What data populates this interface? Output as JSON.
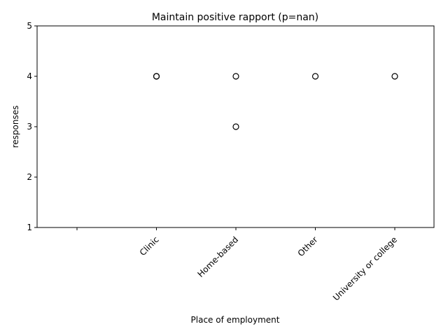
{
  "chart_data": {
    "type": "boxplot",
    "title": "Maintain positive rapport (p=nan)",
    "xlabel": "Place of employment",
    "ylabel": "responses",
    "ylim": [
      1,
      5
    ],
    "yticks": [
      1,
      2,
      3,
      4,
      5
    ],
    "categories": [
      "",
      "Clinic",
      "Home-based",
      "Other",
      "University or college"
    ],
    "series": [
      {
        "category": "",
        "median": null,
        "outliers": []
      },
      {
        "category": "Clinic",
        "median": 5,
        "outliers": [
          4,
          4
        ]
      },
      {
        "category": "Home-based",
        "median": 5,
        "outliers": [
          4,
          3
        ]
      },
      {
        "category": "Other",
        "median": 5,
        "outliers": [
          4
        ]
      },
      {
        "category": "University or college",
        "median": 5,
        "outliers": [
          4
        ]
      }
    ],
    "grid": false,
    "colors": {
      "marker_edge": "#000000",
      "axis": "#000000",
      "background": "#ffffff"
    }
  }
}
